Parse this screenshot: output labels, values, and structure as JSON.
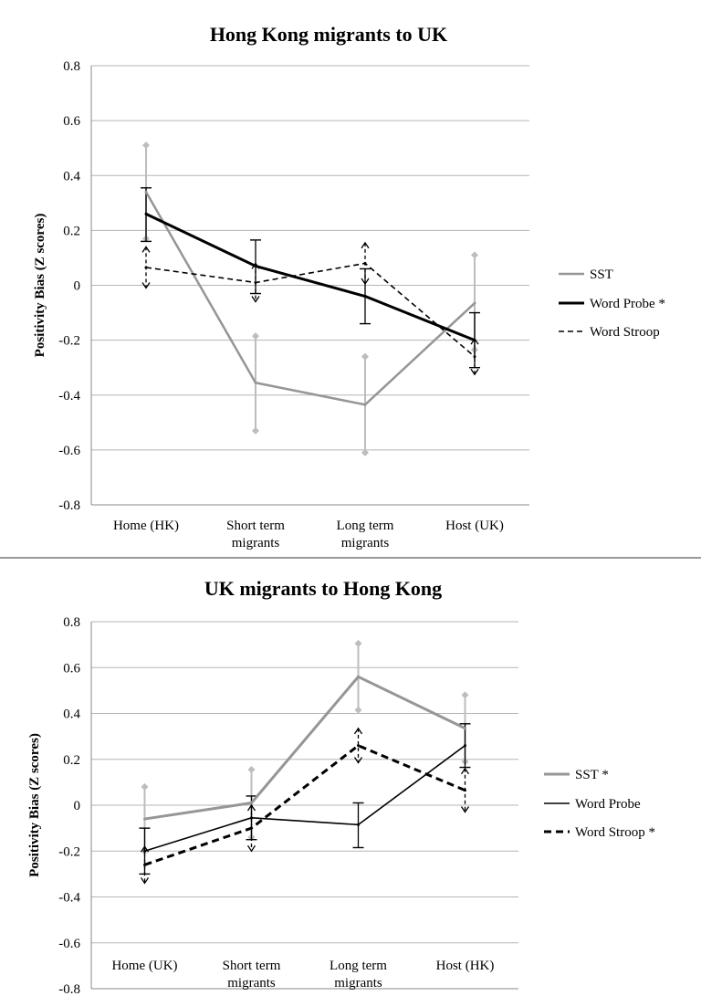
{
  "chart_data": [
    {
      "type": "line",
      "title": "Hong Kong migrants to UK",
      "ylabel": "Positivity Bias  (Z scores)",
      "xlabel": "",
      "ylim": [
        -0.8,
        0.8
      ],
      "ytick_step": 0.2,
      "ytick_labels": [
        "-0.8",
        "-0.6",
        "-0.4",
        "-0.2",
        "0",
        "0.2",
        "0.4",
        "0.6",
        "0.8"
      ],
      "categories": [
        [
          "Home (HK)"
        ],
        [
          "Short term",
          "migrants"
        ],
        [
          "Long term",
          "migrants"
        ],
        [
          "Host (UK)"
        ]
      ],
      "grid": true,
      "legend_position": "right",
      "series": [
        {
          "name": "SST",
          "style": "gray",
          "values": [
            0.34,
            -0.355,
            -0.435,
            -0.065
          ],
          "err_low": [
            0.17,
            -0.53,
            -0.61,
            -0.235
          ],
          "err_high": [
            0.51,
            -0.185,
            -0.26,
            0.11
          ]
        },
        {
          "name": "Word Probe *",
          "style": "black-thick",
          "values": [
            0.26,
            0.07,
            -0.04,
            -0.2
          ],
          "err_low": [
            0.16,
            -0.03,
            -0.14,
            -0.3
          ],
          "err_high": [
            0.355,
            0.165,
            0.06,
            -0.1
          ]
        },
        {
          "name": "Word Stroop",
          "style": "dashed",
          "values": [
            0.065,
            0.01,
            0.08,
            -0.26
          ],
          "err_low": [
            -0.01,
            -0.06,
            0.005,
            -0.325
          ],
          "err_high": [
            0.14,
            0.08,
            0.155,
            -0.195
          ]
        }
      ]
    },
    {
      "type": "line",
      "title": "UK migrants to Hong Kong",
      "ylabel": "Positivity Bias  (Z scores)",
      "xlabel": "",
      "ylim": [
        -0.8,
        0.8
      ],
      "ytick_step": 0.2,
      "ytick_labels": [
        "-0.8",
        "-0.6",
        "-0.4",
        "-0.2",
        "0",
        "0.2",
        "0.4",
        "0.6",
        "0.8"
      ],
      "categories": [
        [
          "Home (UK)"
        ],
        [
          "Short term",
          "migrants"
        ],
        [
          "Long term",
          "migrants"
        ],
        [
          "Host (HK)"
        ]
      ],
      "grid": true,
      "legend_position": "right",
      "series": [
        {
          "name": "SST *",
          "style": "gray-thick",
          "values": [
            -0.06,
            0.01,
            0.56,
            0.335
          ],
          "err_low": [
            -0.2,
            -0.14,
            0.415,
            0.19
          ],
          "err_high": [
            0.08,
            0.155,
            0.705,
            0.48
          ]
        },
        {
          "name": "Word Probe",
          "style": "black",
          "values": [
            -0.2,
            -0.055,
            -0.085,
            0.26
          ],
          "err_low": [
            -0.3,
            -0.15,
            -0.185,
            0.165
          ],
          "err_high": [
            -0.1,
            0.04,
            0.01,
            0.355
          ]
        },
        {
          "name": "Word Stroop *",
          "style": "dashed-thick",
          "values": [
            -0.26,
            -0.1,
            0.26,
            0.065
          ],
          "err_low": [
            -0.34,
            -0.2,
            0.185,
            -0.03
          ],
          "err_high": [
            -0.18,
            0.0,
            0.335,
            0.16
          ]
        }
      ]
    }
  ]
}
